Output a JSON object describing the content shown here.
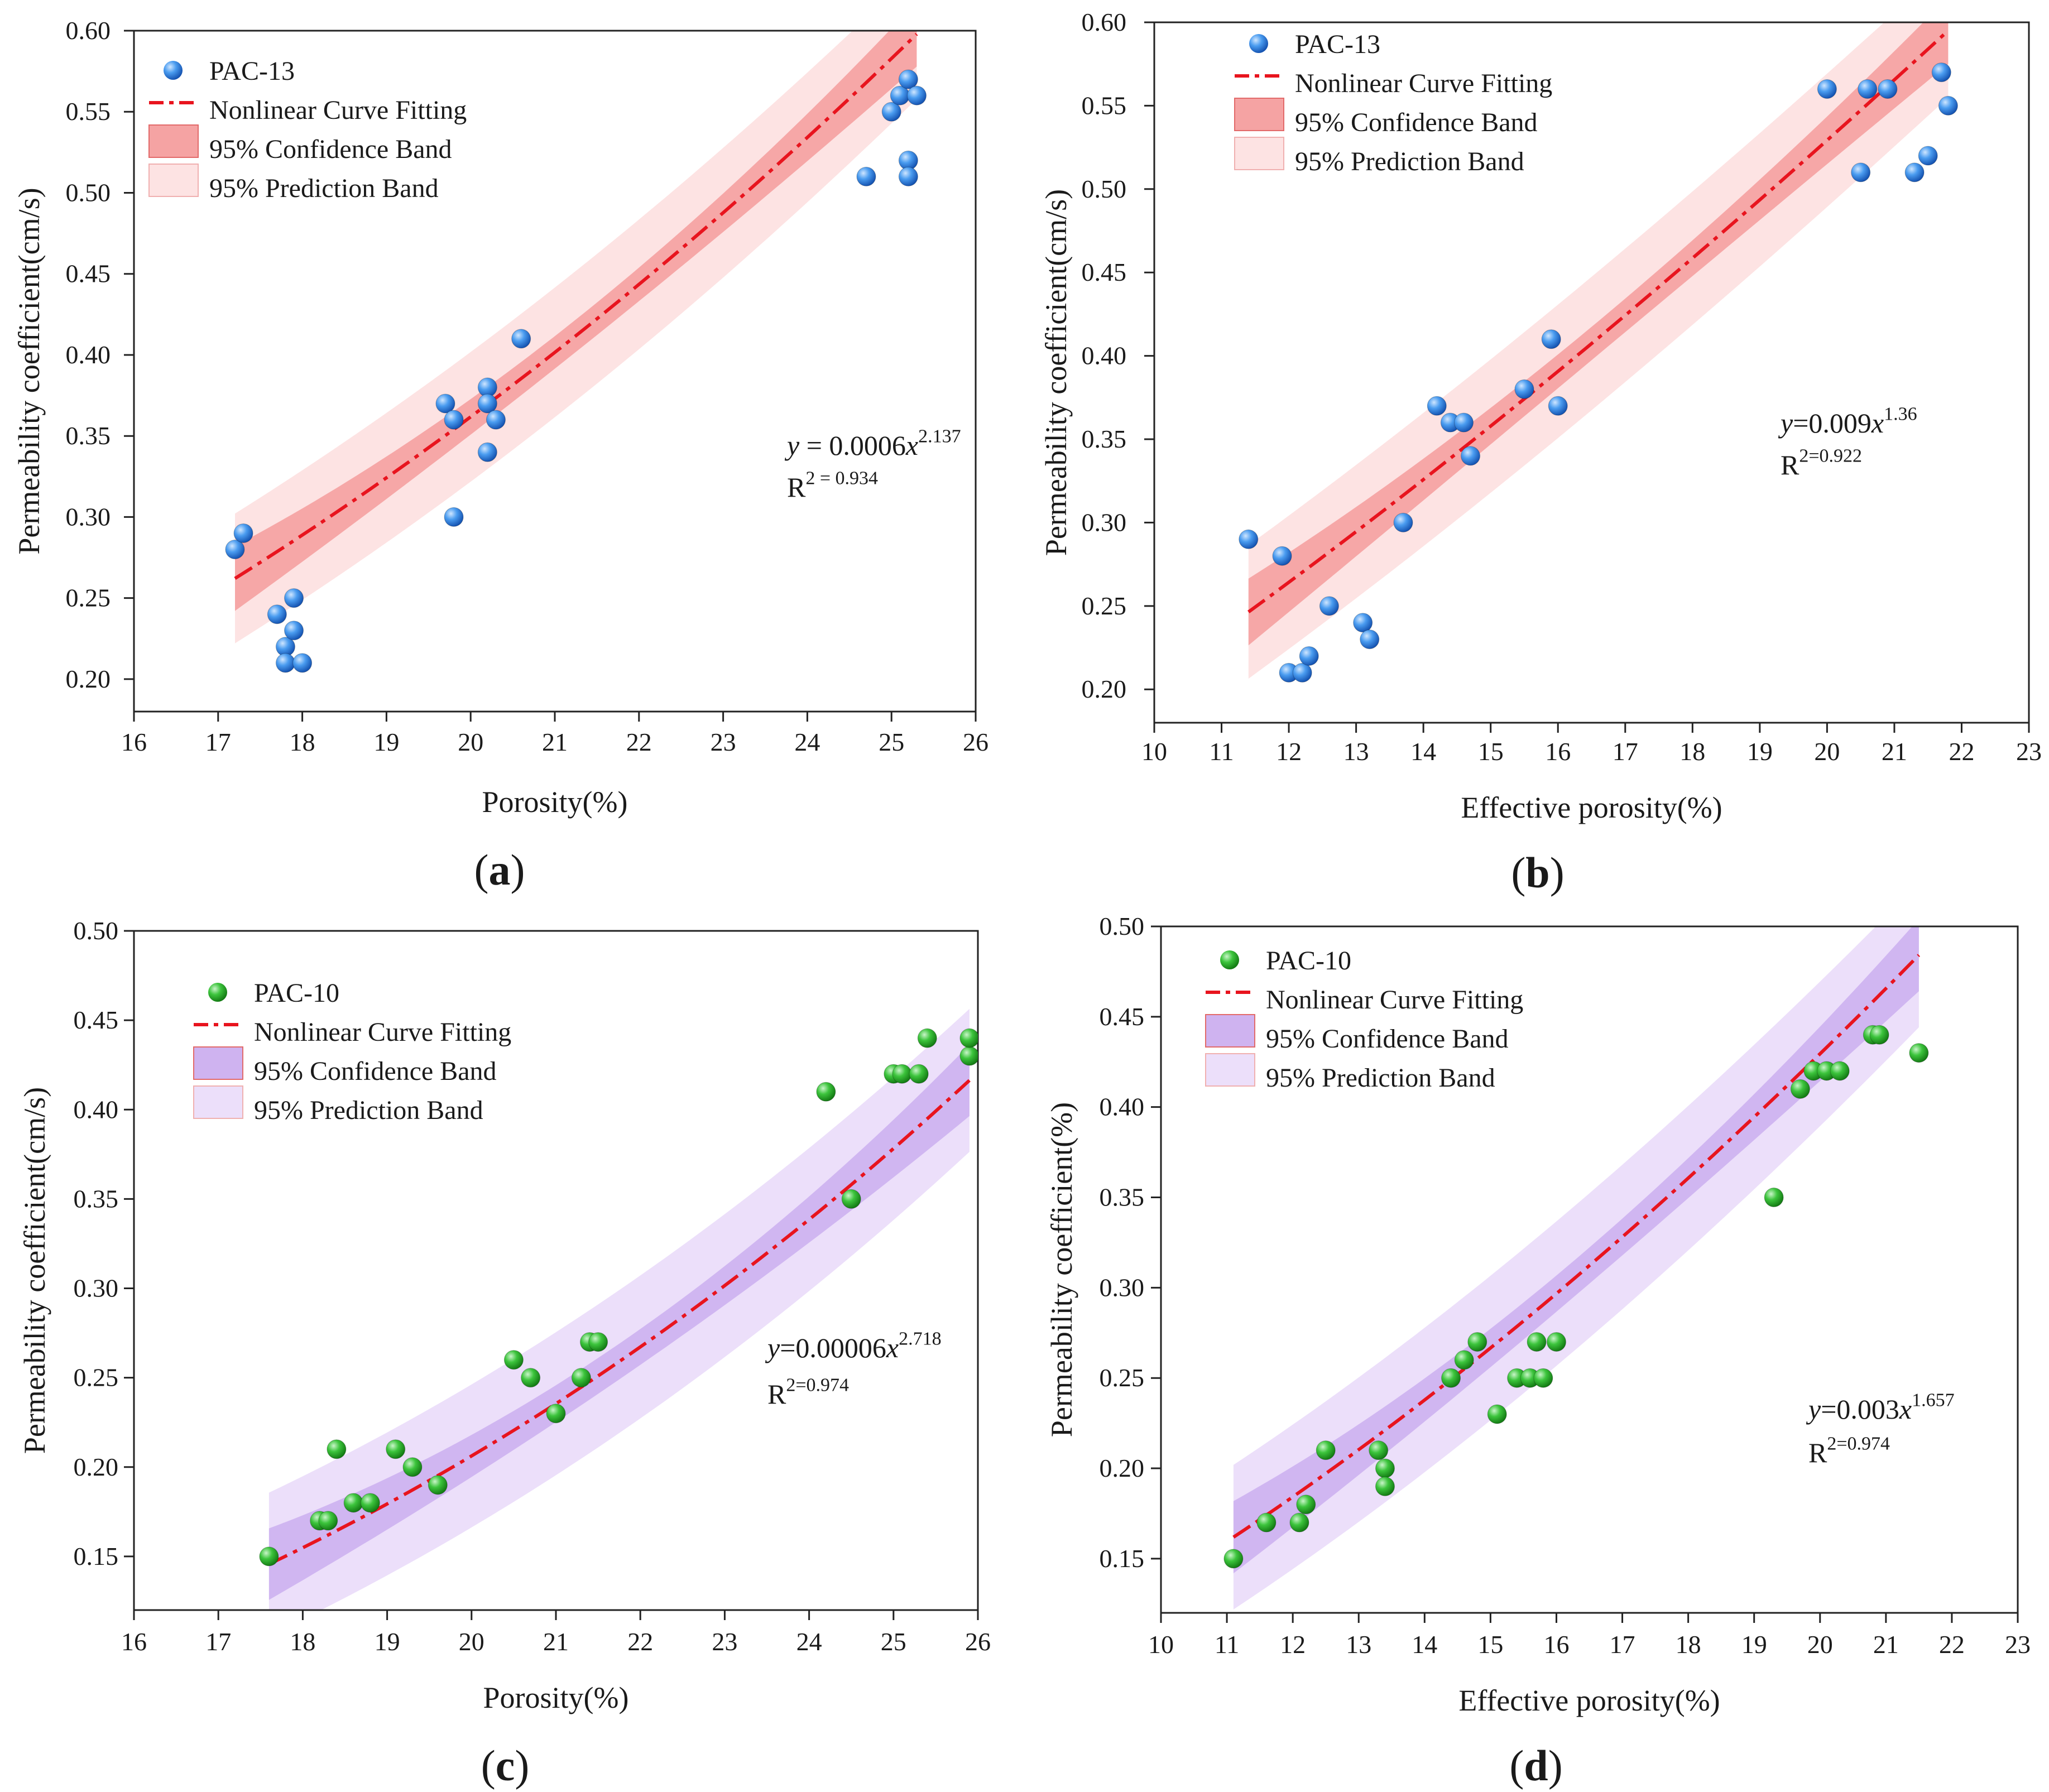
{
  "chart_data": [
    {
      "type": "scatter",
      "panel_label": "(a)",
      "xlabel": "Porosity(%)",
      "ylabel": "Permeability coefficient(cm/s)",
      "xlim": [
        16,
        26
      ],
      "ylim": [
        0.18,
        0.6
      ],
      "xticks": [
        "16",
        "17",
        "18",
        "19",
        "20",
        "21",
        "22",
        "23",
        "24",
        "25",
        "26"
      ],
      "yticks": [
        "0.20",
        "0.25",
        "0.30",
        "0.35",
        "0.40",
        "0.45",
        "0.50",
        "0.55",
        "0.60"
      ],
      "legend_position": "top-left",
      "legend": [
        "PAC-13",
        "Nonlinear Curve Fitting",
        "95% Confidence Band",
        "95% Prediction Band"
      ],
      "equation": "y = 0.0006x^2.137",
      "r2": "R^2 = 0.934",
      "fit": {
        "a": 0.0006,
        "b": 2.137,
        "x_range": [
          17.2,
          25.3
        ]
      },
      "colors": {
        "point": "#3a8ce6",
        "fit": "#e8141e",
        "confidence": "#f5a3a3",
        "prediction": "#fde3e3"
      },
      "points": [
        {
          "x": 17.2,
          "y": 0.28
        },
        {
          "x": 17.3,
          "y": 0.29
        },
        {
          "x": 17.7,
          "y": 0.24
        },
        {
          "x": 17.8,
          "y": 0.22
        },
        {
          "x": 17.8,
          "y": 0.21
        },
        {
          "x": 17.9,
          "y": 0.23
        },
        {
          "x": 17.9,
          "y": 0.25
        },
        {
          "x": 18.0,
          "y": 0.21
        },
        {
          "x": 19.7,
          "y": 0.37
        },
        {
          "x": 19.8,
          "y": 0.36
        },
        {
          "x": 19.8,
          "y": 0.3
        },
        {
          "x": 20.2,
          "y": 0.38
        },
        {
          "x": 20.2,
          "y": 0.37
        },
        {
          "x": 20.2,
          "y": 0.34
        },
        {
          "x": 20.3,
          "y": 0.36
        },
        {
          "x": 20.6,
          "y": 0.41
        },
        {
          "x": 24.7,
          "y": 0.51
        },
        {
          "x": 25.0,
          "y": 0.55
        },
        {
          "x": 25.1,
          "y": 0.56
        },
        {
          "x": 25.2,
          "y": 0.57
        },
        {
          "x": 25.2,
          "y": 0.52
        },
        {
          "x": 25.2,
          "y": 0.51
        },
        {
          "x": 25.3,
          "y": 0.56
        }
      ]
    },
    {
      "type": "scatter",
      "panel_label": "(b)",
      "xlabel": "Effective porosity(%)",
      "ylabel": "Permeability coefficient(cm/s)",
      "xlim": [
        10,
        23
      ],
      "ylim": [
        0.18,
        0.6
      ],
      "xticks": [
        "10",
        "11",
        "12",
        "13",
        "14",
        "15",
        "16",
        "17",
        "18",
        "19",
        "20",
        "21",
        "22",
        "23"
      ],
      "yticks": [
        "0.20",
        "0.25",
        "0.30",
        "0.35",
        "0.40",
        "0.45",
        "0.50",
        "0.55",
        "0.60"
      ],
      "legend_position": "top-left",
      "legend": [
        "PAC-13",
        "Nonlinear Curve Fitting",
        "95% Confidence Band",
        "95% Prediction Band"
      ],
      "equation": "y=0.009x^1.36",
      "r2": "R^2=0.922",
      "fit": {
        "a": 0.009,
        "b": 1.36,
        "x_range": [
          11.4,
          21.8
        ]
      },
      "colors": {
        "point": "#3a8ce6",
        "fit": "#e8141e",
        "confidence": "#f5a3a3",
        "prediction": "#fde3e3"
      },
      "points": [
        {
          "x": 11.4,
          "y": 0.29
        },
        {
          "x": 11.9,
          "y": 0.28
        },
        {
          "x": 12.0,
          "y": 0.21
        },
        {
          "x": 12.2,
          "y": 0.21
        },
        {
          "x": 12.3,
          "y": 0.22
        },
        {
          "x": 12.6,
          "y": 0.25
        },
        {
          "x": 13.1,
          "y": 0.24
        },
        {
          "x": 13.2,
          "y": 0.23
        },
        {
          "x": 13.7,
          "y": 0.3
        },
        {
          "x": 14.2,
          "y": 0.37
        },
        {
          "x": 14.4,
          "y": 0.36
        },
        {
          "x": 14.6,
          "y": 0.36
        },
        {
          "x": 14.7,
          "y": 0.34
        },
        {
          "x": 15.5,
          "y": 0.38
        },
        {
          "x": 15.9,
          "y": 0.41
        },
        {
          "x": 16.0,
          "y": 0.37
        },
        {
          "x": 20.0,
          "y": 0.56
        },
        {
          "x": 20.5,
          "y": 0.51
        },
        {
          "x": 20.6,
          "y": 0.56
        },
        {
          "x": 20.9,
          "y": 0.56
        },
        {
          "x": 21.3,
          "y": 0.51
        },
        {
          "x": 21.5,
          "y": 0.52
        },
        {
          "x": 21.7,
          "y": 0.57
        },
        {
          "x": 21.8,
          "y": 0.55
        }
      ]
    },
    {
      "type": "scatter",
      "panel_label": "(c)",
      "xlabel": "Porosity(%)",
      "ylabel": "Permeability coefficient(cm/s)",
      "xlim": [
        16,
        26
      ],
      "ylim": [
        0.12,
        0.5
      ],
      "xticks": [
        "16",
        "17",
        "18",
        "19",
        "20",
        "21",
        "22",
        "23",
        "24",
        "25",
        "26"
      ],
      "yticks": [
        "0.15",
        "0.20",
        "0.25",
        "0.30",
        "0.35",
        "0.40",
        "0.45",
        "0.50"
      ],
      "legend_position": "top-left",
      "legend": [
        "PAC-10",
        "Nonlinear Curve Fitting",
        "95% Confidence Band",
        "95% Prediction Band"
      ],
      "equation": "y=0.00006x^2.718",
      "r2": "R^2=0.974",
      "fit": {
        "a": 6e-05,
        "b": 2.718,
        "x_range": [
          17.6,
          25.9
        ]
      },
      "colors": {
        "point": "#33b233",
        "fit": "#e8141e",
        "confidence": "#cfb3f0",
        "prediction": "#ecdffa"
      },
      "points": [
        {
          "x": 17.6,
          "y": 0.15
        },
        {
          "x": 18.2,
          "y": 0.17
        },
        {
          "x": 18.3,
          "y": 0.17
        },
        {
          "x": 18.4,
          "y": 0.21
        },
        {
          "x": 18.6,
          "y": 0.18
        },
        {
          "x": 18.8,
          "y": 0.18
        },
        {
          "x": 19.1,
          "y": 0.21
        },
        {
          "x": 19.3,
          "y": 0.2
        },
        {
          "x": 19.6,
          "y": 0.19
        },
        {
          "x": 20.5,
          "y": 0.26
        },
        {
          "x": 20.7,
          "y": 0.25
        },
        {
          "x": 21.0,
          "y": 0.23
        },
        {
          "x": 21.3,
          "y": 0.25
        },
        {
          "x": 21.4,
          "y": 0.27
        },
        {
          "x": 21.5,
          "y": 0.27
        },
        {
          "x": 24.2,
          "y": 0.41
        },
        {
          "x": 24.5,
          "y": 0.35
        },
        {
          "x": 25.0,
          "y": 0.42
        },
        {
          "x": 25.1,
          "y": 0.42
        },
        {
          "x": 25.3,
          "y": 0.42
        },
        {
          "x": 25.4,
          "y": 0.44
        },
        {
          "x": 25.9,
          "y": 0.43
        },
        {
          "x": 25.9,
          "y": 0.44
        }
      ]
    },
    {
      "type": "scatter",
      "panel_label": "(d)",
      "xlabel": "Effective porosity(%)",
      "ylabel": "Permeability coefficient(%)",
      "xlim": [
        10,
        23
      ],
      "ylim": [
        0.12,
        0.5
      ],
      "xticks": [
        "10",
        "11",
        "12",
        "13",
        "14",
        "15",
        "16",
        "17",
        "18",
        "19",
        "20",
        "21",
        "22",
        "23"
      ],
      "yticks": [
        "0.15",
        "0.20",
        "0.25",
        "0.30",
        "0.35",
        "0.40",
        "0.45",
        "0.50"
      ],
      "legend_position": "top-left",
      "legend": [
        "PAC-10",
        "Nonlinear Curve Fitting",
        "95% Confidence Band",
        "95% Prediction Band"
      ],
      "equation": "y=0.003x^1.657",
      "r2": "R^2=0.974",
      "fit": {
        "a": 0.003,
        "b": 1.657,
        "x_range": [
          11.1,
          21.5
        ]
      },
      "colors": {
        "point": "#33b233",
        "fit": "#e8141e",
        "confidence": "#cfb3f0",
        "prediction": "#ecdffa"
      },
      "points": [
        {
          "x": 11.1,
          "y": 0.15
        },
        {
          "x": 11.6,
          "y": 0.17
        },
        {
          "x": 12.1,
          "y": 0.17
        },
        {
          "x": 12.2,
          "y": 0.18
        },
        {
          "x": 12.5,
          "y": 0.21
        },
        {
          "x": 13.3,
          "y": 0.21
        },
        {
          "x": 13.4,
          "y": 0.2
        },
        {
          "x": 13.4,
          "y": 0.19
        },
        {
          "x": 14.4,
          "y": 0.25
        },
        {
          "x": 14.6,
          "y": 0.26
        },
        {
          "x": 14.8,
          "y": 0.27
        },
        {
          "x": 15.1,
          "y": 0.23
        },
        {
          "x": 15.4,
          "y": 0.25
        },
        {
          "x": 15.6,
          "y": 0.25
        },
        {
          "x": 15.7,
          "y": 0.27
        },
        {
          "x": 15.8,
          "y": 0.25
        },
        {
          "x": 16.0,
          "y": 0.27
        },
        {
          "x": 19.3,
          "y": 0.35
        },
        {
          "x": 19.7,
          "y": 0.41
        },
        {
          "x": 19.9,
          "y": 0.42
        },
        {
          "x": 20.1,
          "y": 0.42
        },
        {
          "x": 20.3,
          "y": 0.42
        },
        {
          "x": 20.8,
          "y": 0.44
        },
        {
          "x": 20.9,
          "y": 0.44
        },
        {
          "x": 21.5,
          "y": 0.43
        }
      ]
    }
  ]
}
